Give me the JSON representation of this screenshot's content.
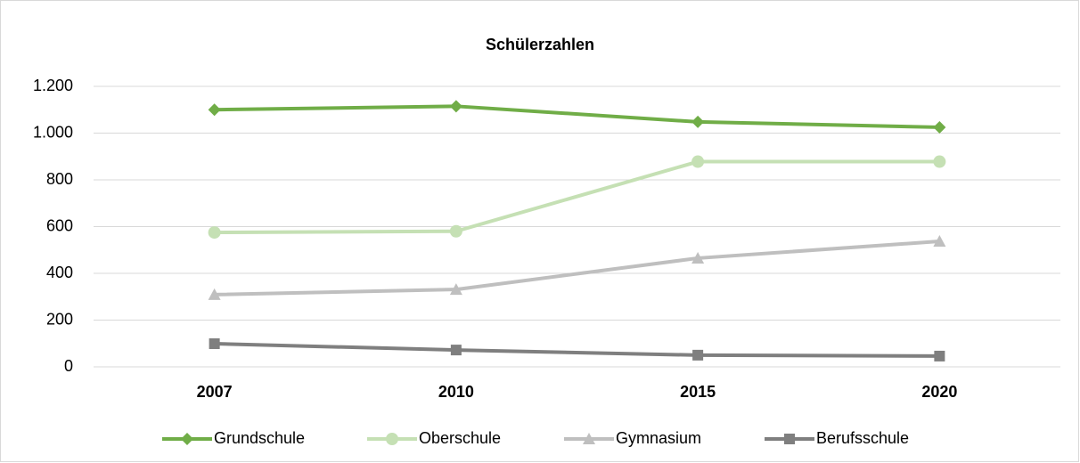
{
  "chart_data": {
    "type": "line",
    "title": "Schülerzahlen",
    "categories": [
      "2007",
      "2010",
      "2015",
      "2020"
    ],
    "series": [
      {
        "name": "Grundschule",
        "color": "#70ad47",
        "marker": "diamond",
        "values": [
          1100,
          1115,
          1048,
          1025
        ]
      },
      {
        "name": "Oberschule",
        "color": "#c5e0b4",
        "marker": "circle",
        "values": [
          575,
          580,
          878,
          878
        ]
      },
      {
        "name": "Gymnasium",
        "color": "#bfbfbf",
        "marker": "triangle",
        "values": [
          309,
          331,
          465,
          537
        ]
      },
      {
        "name": "Berufsschule",
        "color": "#7f7f7f",
        "marker": "square",
        "values": [
          99,
          72,
          50,
          46
        ]
      }
    ],
    "ylim": [
      0,
      1200
    ],
    "yticks": [
      0,
      200,
      400,
      600,
      800,
      {
        "value": 1000,
        "label": "1.000"
      },
      {
        "value": 1200,
        "label": "1.200"
      }
    ],
    "grid": true,
    "legend": "bottom"
  }
}
